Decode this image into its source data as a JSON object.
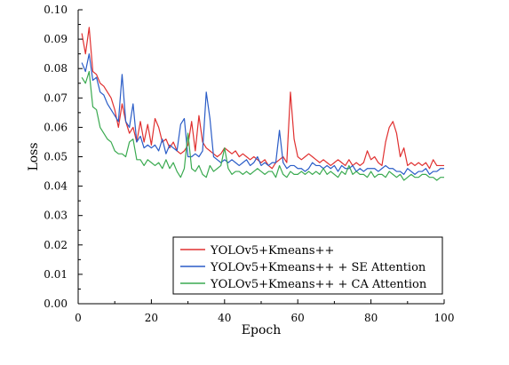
{
  "chart_data": {
    "type": "line",
    "title": "",
    "xlabel": "Epoch",
    "ylabel": "Loss",
    "xlim": [
      0,
      100
    ],
    "ylim": [
      0,
      0.1
    ],
    "xticks": [
      "0",
      "20",
      "40",
      "60",
      "80",
      "100"
    ],
    "yticks": [
      "0.00",
      "0.01",
      "0.02",
      "0.03",
      "0.04",
      "0.05",
      "0.06",
      "0.07",
      "0.08",
      "0.09",
      "0.10"
    ],
    "grid": false,
    "legend_position": "bottom-right",
    "series": [
      {
        "name": "YOLOv5+Kmeans++",
        "color": "#e03030",
        "points": [
          [
            1,
            0.092
          ],
          [
            2,
            0.085
          ],
          [
            3,
            0.094
          ],
          [
            4,
            0.079
          ],
          [
            5,
            0.078
          ],
          [
            6,
            0.075
          ],
          [
            7,
            0.074
          ],
          [
            8,
            0.072
          ],
          [
            9,
            0.07
          ],
          [
            10,
            0.066
          ],
          [
            11,
            0.06
          ],
          [
            12,
            0.068
          ],
          [
            13,
            0.062
          ],
          [
            14,
            0.058
          ],
          [
            15,
            0.06
          ],
          [
            16,
            0.055
          ],
          [
            17,
            0.062
          ],
          [
            18,
            0.055
          ],
          [
            19,
            0.061
          ],
          [
            20,
            0.054
          ],
          [
            21,
            0.063
          ],
          [
            22,
            0.06
          ],
          [
            23,
            0.055
          ],
          [
            24,
            0.056
          ],
          [
            25,
            0.053
          ],
          [
            26,
            0.055
          ],
          [
            27,
            0.052
          ],
          [
            28,
            0.051
          ],
          [
            29,
            0.052
          ],
          [
            30,
            0.054
          ],
          [
            31,
            0.062
          ],
          [
            32,
            0.052
          ],
          [
            33,
            0.064
          ],
          [
            34,
            0.055
          ],
          [
            35,
            0.053
          ],
          [
            36,
            0.052
          ],
          [
            37,
            0.051
          ],
          [
            38,
            0.05
          ],
          [
            39,
            0.051
          ],
          [
            40,
            0.053
          ],
          [
            41,
            0.052
          ],
          [
            42,
            0.051
          ],
          [
            43,
            0.052
          ],
          [
            44,
            0.05
          ],
          [
            45,
            0.051
          ],
          [
            46,
            0.05
          ],
          [
            47,
            0.049
          ],
          [
            48,
            0.05
          ],
          [
            49,
            0.049
          ],
          [
            50,
            0.048
          ],
          [
            51,
            0.049
          ],
          [
            52,
            0.047
          ],
          [
            53,
            0.046
          ],
          [
            54,
            0.048
          ],
          [
            55,
            0.049
          ],
          [
            56,
            0.05
          ],
          [
            57,
            0.048
          ],
          [
            58,
            0.072
          ],
          [
            59,
            0.056
          ],
          [
            60,
            0.05
          ],
          [
            61,
            0.049
          ],
          [
            62,
            0.05
          ],
          [
            63,
            0.051
          ],
          [
            64,
            0.05
          ],
          [
            65,
            0.049
          ],
          [
            66,
            0.048
          ],
          [
            67,
            0.049
          ],
          [
            68,
            0.048
          ],
          [
            69,
            0.047
          ],
          [
            70,
            0.048
          ],
          [
            71,
            0.049
          ],
          [
            72,
            0.048
          ],
          [
            73,
            0.047
          ],
          [
            74,
            0.049
          ],
          [
            75,
            0.047
          ],
          [
            76,
            0.048
          ],
          [
            77,
            0.047
          ],
          [
            78,
            0.048
          ],
          [
            79,
            0.052
          ],
          [
            80,
            0.049
          ],
          [
            81,
            0.05
          ],
          [
            82,
            0.048
          ],
          [
            83,
            0.047
          ],
          [
            84,
            0.055
          ],
          [
            85,
            0.06
          ],
          [
            86,
            0.062
          ],
          [
            87,
            0.058
          ],
          [
            88,
            0.05
          ],
          [
            89,
            0.053
          ],
          [
            90,
            0.047
          ],
          [
            91,
            0.048
          ],
          [
            92,
            0.047
          ],
          [
            93,
            0.048
          ],
          [
            94,
            0.047
          ],
          [
            95,
            0.048
          ],
          [
            96,
            0.046
          ],
          [
            97,
            0.049
          ],
          [
            98,
            0.047
          ],
          [
            99,
            0.047
          ],
          [
            100,
            0.047
          ]
        ]
      },
      {
        "name": "YOLOv5+Kmeans++ + SE Attention",
        "color": "#2a5cc7",
        "points": [
          [
            1,
            0.082
          ],
          [
            2,
            0.079
          ],
          [
            3,
            0.085
          ],
          [
            4,
            0.076
          ],
          [
            5,
            0.077
          ],
          [
            6,
            0.072
          ],
          [
            7,
            0.071
          ],
          [
            8,
            0.068
          ],
          [
            9,
            0.066
          ],
          [
            10,
            0.064
          ],
          [
            11,
            0.062
          ],
          [
            12,
            0.078
          ],
          [
            13,
            0.062
          ],
          [
            14,
            0.06
          ],
          [
            15,
            0.068
          ],
          [
            16,
            0.055
          ],
          [
            17,
            0.057
          ],
          [
            18,
            0.053
          ],
          [
            19,
            0.054
          ],
          [
            20,
            0.053
          ],
          [
            21,
            0.054
          ],
          [
            22,
            0.052
          ],
          [
            23,
            0.056
          ],
          [
            24,
            0.051
          ],
          [
            25,
            0.054
          ],
          [
            26,
            0.053
          ],
          [
            27,
            0.052
          ],
          [
            28,
            0.061
          ],
          [
            29,
            0.063
          ],
          [
            30,
            0.05
          ],
          [
            31,
            0.05
          ],
          [
            32,
            0.051
          ],
          [
            33,
            0.05
          ],
          [
            34,
            0.052
          ],
          [
            35,
            0.072
          ],
          [
            36,
            0.063
          ],
          [
            37,
            0.05
          ],
          [
            38,
            0.049
          ],
          [
            39,
            0.048
          ],
          [
            40,
            0.049
          ],
          [
            41,
            0.048
          ],
          [
            42,
            0.049
          ],
          [
            43,
            0.048
          ],
          [
            44,
            0.047
          ],
          [
            45,
            0.048
          ],
          [
            46,
            0.049
          ],
          [
            47,
            0.047
          ],
          [
            48,
            0.048
          ],
          [
            49,
            0.05
          ],
          [
            50,
            0.047
          ],
          [
            51,
            0.048
          ],
          [
            52,
            0.047
          ],
          [
            53,
            0.048
          ],
          [
            54,
            0.048
          ],
          [
            55,
            0.059
          ],
          [
            56,
            0.048
          ],
          [
            57,
            0.046
          ],
          [
            58,
            0.047
          ],
          [
            59,
            0.047
          ],
          [
            60,
            0.046
          ],
          [
            61,
            0.046
          ],
          [
            62,
            0.045
          ],
          [
            63,
            0.046
          ],
          [
            64,
            0.048
          ],
          [
            65,
            0.047
          ],
          [
            66,
            0.047
          ],
          [
            67,
            0.046
          ],
          [
            68,
            0.047
          ],
          [
            69,
            0.046
          ],
          [
            70,
            0.047
          ],
          [
            71,
            0.045
          ],
          [
            72,
            0.047
          ],
          [
            73,
            0.046
          ],
          [
            74,
            0.046
          ],
          [
            75,
            0.047
          ],
          [
            76,
            0.045
          ],
          [
            77,
            0.046
          ],
          [
            78,
            0.045
          ],
          [
            79,
            0.046
          ],
          [
            80,
            0.046
          ],
          [
            81,
            0.046
          ],
          [
            82,
            0.045
          ],
          [
            83,
            0.046
          ],
          [
            84,
            0.047
          ],
          [
            85,
            0.046
          ],
          [
            86,
            0.046
          ],
          [
            87,
            0.045
          ],
          [
            88,
            0.045
          ],
          [
            89,
            0.044
          ],
          [
            90,
            0.046
          ],
          [
            91,
            0.045
          ],
          [
            92,
            0.044
          ],
          [
            93,
            0.045
          ],
          [
            94,
            0.045
          ],
          [
            95,
            0.046
          ],
          [
            96,
            0.044
          ],
          [
            97,
            0.045
          ],
          [
            98,
            0.045
          ],
          [
            99,
            0.046
          ],
          [
            100,
            0.046
          ]
        ]
      },
      {
        "name": "YOLOv5+Kmeans++ + CA Attention",
        "color": "#3aaa50",
        "points": [
          [
            1,
            0.077
          ],
          [
            2,
            0.075
          ],
          [
            3,
            0.079
          ],
          [
            4,
            0.067
          ],
          [
            5,
            0.066
          ],
          [
            6,
            0.06
          ],
          [
            7,
            0.058
          ],
          [
            8,
            0.056
          ],
          [
            9,
            0.055
          ],
          [
            10,
            0.052
          ],
          [
            11,
            0.051
          ],
          [
            12,
            0.051
          ],
          [
            13,
            0.05
          ],
          [
            14,
            0.055
          ],
          [
            15,
            0.056
          ],
          [
            16,
            0.049
          ],
          [
            17,
            0.049
          ],
          [
            18,
            0.047
          ],
          [
            19,
            0.049
          ],
          [
            20,
            0.048
          ],
          [
            21,
            0.047
          ],
          [
            22,
            0.048
          ],
          [
            23,
            0.046
          ],
          [
            24,
            0.049
          ],
          [
            25,
            0.046
          ],
          [
            26,
            0.048
          ],
          [
            27,
            0.045
          ],
          [
            28,
            0.043
          ],
          [
            29,
            0.046
          ],
          [
            30,
            0.058
          ],
          [
            31,
            0.046
          ],
          [
            32,
            0.045
          ],
          [
            33,
            0.047
          ],
          [
            34,
            0.044
          ],
          [
            35,
            0.043
          ],
          [
            36,
            0.047
          ],
          [
            37,
            0.045
          ],
          [
            38,
            0.046
          ],
          [
            39,
            0.047
          ],
          [
            40,
            0.053
          ],
          [
            41,
            0.046
          ],
          [
            42,
            0.044
          ],
          [
            43,
            0.045
          ],
          [
            44,
            0.045
          ],
          [
            45,
            0.044
          ],
          [
            46,
            0.045
          ],
          [
            47,
            0.044
          ],
          [
            48,
            0.045
          ],
          [
            49,
            0.046
          ],
          [
            50,
            0.045
          ],
          [
            51,
            0.044
          ],
          [
            52,
            0.045
          ],
          [
            53,
            0.045
          ],
          [
            54,
            0.043
          ],
          [
            55,
            0.047
          ],
          [
            56,
            0.044
          ],
          [
            57,
            0.043
          ],
          [
            58,
            0.045
          ],
          [
            59,
            0.044
          ],
          [
            60,
            0.044
          ],
          [
            61,
            0.045
          ],
          [
            62,
            0.044
          ],
          [
            63,
            0.045
          ],
          [
            64,
            0.044
          ],
          [
            65,
            0.045
          ],
          [
            66,
            0.044
          ],
          [
            67,
            0.046
          ],
          [
            68,
            0.044
          ],
          [
            69,
            0.045
          ],
          [
            70,
            0.044
          ],
          [
            71,
            0.043
          ],
          [
            72,
            0.045
          ],
          [
            73,
            0.044
          ],
          [
            74,
            0.047
          ],
          [
            75,
            0.044
          ],
          [
            76,
            0.045
          ],
          [
            77,
            0.044
          ],
          [
            78,
            0.044
          ],
          [
            79,
            0.043
          ],
          [
            80,
            0.045
          ],
          [
            81,
            0.043
          ],
          [
            82,
            0.044
          ],
          [
            83,
            0.044
          ],
          [
            84,
            0.043
          ],
          [
            85,
            0.045
          ],
          [
            86,
            0.044
          ],
          [
            87,
            0.043
          ],
          [
            88,
            0.044
          ],
          [
            89,
            0.042
          ],
          [
            90,
            0.043
          ],
          [
            91,
            0.044
          ],
          [
            92,
            0.043
          ],
          [
            93,
            0.043
          ],
          [
            94,
            0.044
          ],
          [
            95,
            0.044
          ],
          [
            96,
            0.043
          ],
          [
            97,
            0.043
          ],
          [
            98,
            0.042
          ],
          [
            99,
            0.043
          ],
          [
            100,
            0.043
          ]
        ]
      }
    ]
  }
}
